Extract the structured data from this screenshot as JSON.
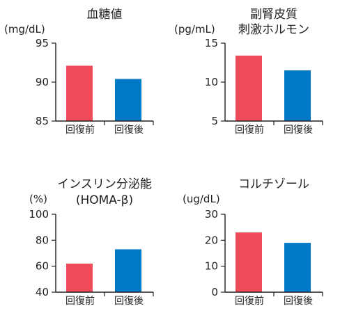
{
  "chart_data": [
    {
      "type": "bar",
      "title": [
        "血糖値"
      ],
      "ylabel": "(mg/dL)",
      "categories": [
        "回復前",
        "回復後"
      ],
      "values": [
        92.1,
        90.4
      ],
      "ylim": [
        85,
        95
      ],
      "yticks": [
        85,
        90,
        95
      ],
      "colors": [
        "#ef4b5b",
        "#0079c7"
      ],
      "grid": false
    },
    {
      "type": "bar",
      "title": [
        "副腎皮質",
        "刺激ホルモン"
      ],
      "ylabel": "(pg/mL)",
      "categories": [
        "回復前",
        "回復後"
      ],
      "values": [
        13.4,
        11.5
      ],
      "ylim": [
        5,
        15
      ],
      "yticks": [
        5,
        10,
        15
      ],
      "colors": [
        "#ef4b5b",
        "#0079c7"
      ],
      "grid": false
    },
    {
      "type": "bar",
      "title": [
        "インスリン分泌能",
        "(HOMA-β)"
      ],
      "ylabel": "(%)",
      "categories": [
        "回復前",
        "回復後"
      ],
      "values": [
        62,
        73
      ],
      "ylim": [
        40,
        100
      ],
      "yticks": [
        40,
        60,
        80,
        100
      ],
      "colors": [
        "#ef4b5b",
        "#0079c7"
      ],
      "grid": false
    },
    {
      "type": "bar",
      "title": [
        "コルチゾール"
      ],
      "ylabel": "(ug/dL)",
      "categories": [
        "回復前",
        "回復後"
      ],
      "values": [
        23,
        19
      ],
      "ylim": [
        0,
        30
      ],
      "yticks": [
        0,
        10,
        20,
        30
      ],
      "colors": [
        "#ef4b5b",
        "#0079c7"
      ],
      "grid": false
    }
  ]
}
